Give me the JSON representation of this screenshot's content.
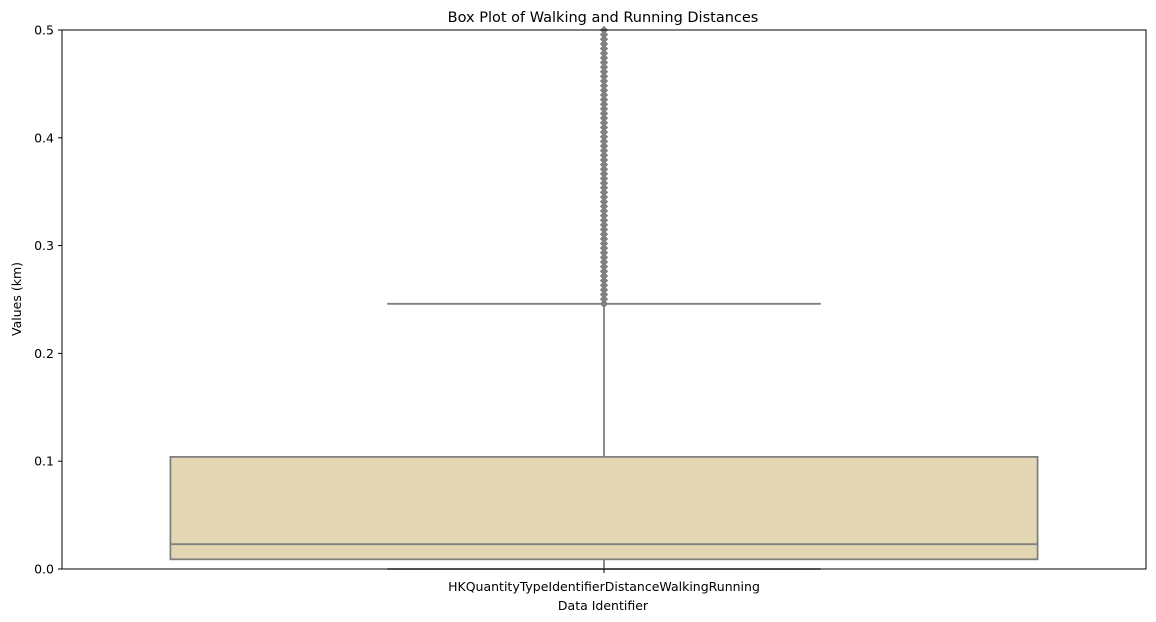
{
  "chart_data": {
    "type": "box",
    "title": "Box Plot of Walking and Running Distances",
    "xlabel": "Data Identifier",
    "ylabel": "Values (km)",
    "categories": [
      "HKQuantityTypeIdentifierDistanceWalkingRunning"
    ],
    "ylim": [
      0,
      0.5
    ],
    "yticks": [
      "0.0",
      "0.1",
      "0.2",
      "0.3",
      "0.4",
      "0.5"
    ],
    "ytick_values": [
      0,
      0.1,
      0.2,
      0.3,
      0.4,
      0.5
    ],
    "boxes": [
      {
        "category": "HKQuantityTypeIdentifierDistanceWalkingRunning",
        "whisker_low": 0.0,
        "q1": 0.009,
        "median": 0.023,
        "q3": 0.104,
        "whisker_high": 0.246,
        "outliers_range": [
          0.246,
          0.5
        ]
      }
    ],
    "grid": false,
    "legend": "none",
    "colors": {
      "box_fill": "#e3d6b3",
      "line": "#808080",
      "outlier": "#808080"
    }
  }
}
